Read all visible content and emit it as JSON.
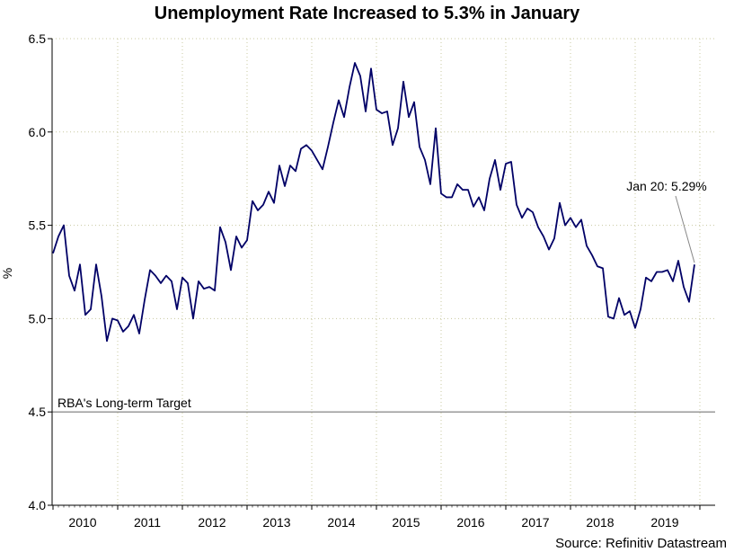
{
  "chart_data": {
    "type": "line",
    "title": "Unemployment Rate Increased to 5.3% in January",
    "xlabel": "",
    "ylabel": "%",
    "ylim": [
      4.0,
      6.5
    ],
    "yticks": [
      "4.0",
      "4.5",
      "5.0",
      "5.5",
      "6.0",
      "6.5"
    ],
    "xticks": [
      "2010",
      "2011",
      "2012",
      "2013",
      "2014",
      "2015",
      "2016",
      "2017",
      "2018",
      "2019"
    ],
    "x_start": "Jan 2010",
    "x_end": "Jan 2020",
    "frequency": "monthly",
    "grid": "dotted",
    "series": [
      {
        "name": "Unemployment Rate",
        "color": "#000066",
        "values": [
          5.35,
          5.44,
          5.5,
          5.23,
          5.15,
          5.29,
          5.02,
          5.05,
          5.29,
          5.12,
          4.88,
          5.0,
          4.99,
          4.93,
          4.96,
          5.02,
          4.92,
          5.1,
          5.26,
          5.23,
          5.19,
          5.23,
          5.2,
          5.05,
          5.22,
          5.19,
          5.0,
          5.2,
          5.16,
          5.17,
          5.15,
          5.49,
          5.41,
          5.26,
          5.44,
          5.38,
          5.42,
          5.63,
          5.58,
          5.61,
          5.68,
          5.62,
          5.82,
          5.71,
          5.82,
          5.79,
          5.91,
          5.93,
          5.9,
          5.85,
          5.8,
          5.92,
          6.05,
          6.17,
          6.08,
          6.24,
          6.37,
          6.3,
          6.11,
          6.34,
          6.12,
          6.1,
          6.11,
          5.93,
          6.02,
          6.27,
          6.08,
          6.16,
          5.92,
          5.85,
          5.72,
          6.02,
          5.67,
          5.65,
          5.65,
          5.72,
          5.69,
          5.69,
          5.6,
          5.65,
          5.58,
          5.75,
          5.85,
          5.69,
          5.83,
          5.84,
          5.61,
          5.54,
          5.59,
          5.57,
          5.49,
          5.44,
          5.37,
          5.43,
          5.62,
          5.5,
          5.54,
          5.49,
          5.53,
          5.39,
          5.34,
          5.28,
          5.27,
          5.01,
          5.0,
          5.11,
          5.02,
          5.04,
          4.95,
          5.05,
          5.22,
          5.2,
          5.25,
          5.25,
          5.26,
          5.2,
          5.31,
          5.17,
          5.09,
          5.29
        ]
      }
    ],
    "reference_line": {
      "label": "RBA's Long-term Target",
      "value": 4.5,
      "color": "#999999"
    },
    "annotations": [
      {
        "text": "Jan 20: 5.29%",
        "x": "Jan 2020",
        "y": 5.29
      }
    ]
  },
  "source": "Source: Refinitiv Datastream"
}
